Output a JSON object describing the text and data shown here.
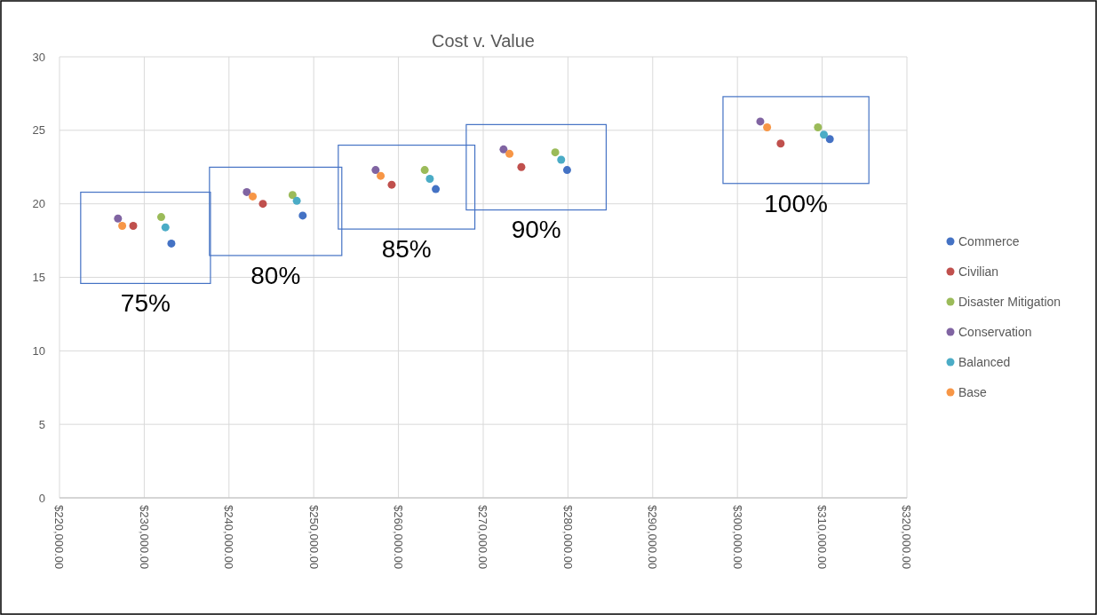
{
  "chart_data": {
    "type": "scatter",
    "title": "Cost v. Value",
    "xlim": [
      220000,
      320000
    ],
    "ylim": [
      0,
      30
    ],
    "xticks": [
      {
        "value": 220000,
        "label": "$220,000.00"
      },
      {
        "value": 230000,
        "label": "$230,000.00"
      },
      {
        "value": 240000,
        "label": "$240,000.00"
      },
      {
        "value": 250000,
        "label": "$250,000.00"
      },
      {
        "value": 260000,
        "label": "$260,000.00"
      },
      {
        "value": 270000,
        "label": "$270,000.00"
      },
      {
        "value": 280000,
        "label": "$280,000.00"
      },
      {
        "value": 290000,
        "label": "$290,000.00"
      },
      {
        "value": 300000,
        "label": "$300,000.00"
      },
      {
        "value": 310000,
        "label": "$310,000.00"
      },
      {
        "value": 320000,
        "label": "$320,000.00"
      }
    ],
    "yticks": [
      0,
      5,
      10,
      15,
      20,
      25,
      30
    ],
    "grid": true,
    "legend": "right",
    "marker": "circle",
    "series": [
      {
        "name": "Commerce",
        "color": "#4472c4",
        "x": [
          233200,
          248700,
          264400,
          279900,
          310900
        ],
        "values": [
          17.3,
          19.2,
          21.0,
          22.3,
          24.4
        ]
      },
      {
        "name": "Civilian",
        "color": "#c0504d",
        "x": [
          228700,
          244000,
          259200,
          274500,
          305100
        ],
        "values": [
          18.5,
          20.0,
          21.3,
          22.5,
          24.1
        ]
      },
      {
        "name": "Disaster Mitigation",
        "color": "#9bbb59",
        "x": [
          232000,
          247500,
          263100,
          278500,
          309500
        ],
        "values": [
          19.1,
          20.6,
          22.3,
          23.5,
          25.2
        ]
      },
      {
        "name": "Conservation",
        "color": "#8064a2",
        "x": [
          226900,
          242100,
          257300,
          272400,
          302700
        ],
        "values": [
          19.0,
          20.8,
          22.3,
          23.7,
          25.6
        ]
      },
      {
        "name": "Balanced",
        "color": "#4bacc6",
        "x": [
          232500,
          248000,
          263700,
          279200,
          310200
        ],
        "values": [
          18.4,
          20.2,
          21.7,
          23.0,
          24.7
        ]
      },
      {
        "name": "Base",
        "color": "#f79646",
        "x": [
          227400,
          242800,
          257900,
          273100,
          303500
        ],
        "values": [
          18.5,
          20.5,
          21.9,
          23.4,
          25.2
        ]
      }
    ],
    "annotations": [
      "75%",
      "80%",
      "85%",
      "90%",
      "100%"
    ]
  }
}
